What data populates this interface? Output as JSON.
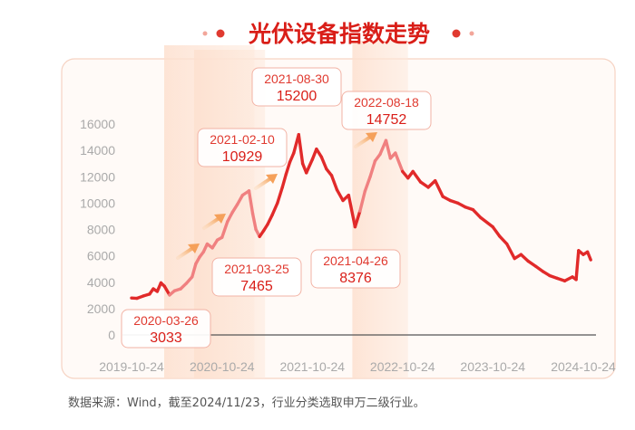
{
  "chart_data": {
    "type": "line",
    "title": "光伏设备指数走势",
    "xlabel": "",
    "ylabel": "",
    "x_ticks": [
      "2019-10-24",
      "2020-10-24",
      "2021-10-24",
      "2022-10-24",
      "2023-10-24",
      "2024-10-24"
    ],
    "y_ticks": [
      0,
      2000,
      4000,
      6000,
      8000,
      10000,
      12000,
      14000,
      16000
    ],
    "ylim": [
      0,
      16000
    ],
    "xlim": [
      "2019-10-24",
      "2024-11-23"
    ],
    "grid": false,
    "legend": "none",
    "series": [
      {
        "points": [
          [
            "2019-10-24",
            2800
          ],
          [
            "2019-11-15",
            2780
          ],
          [
            "2019-12-10",
            2950
          ],
          [
            "2020-01-05",
            3100
          ],
          [
            "2020-01-20",
            3500
          ],
          [
            "2020-02-05",
            3300
          ],
          [
            "2020-02-20",
            3950
          ],
          [
            "2020-03-05",
            3700
          ],
          [
            "2020-03-26",
            3033
          ],
          [
            "2020-04-15",
            3350
          ],
          [
            "2020-05-10",
            3500
          ],
          [
            "2020-06-01",
            3900
          ],
          [
            "2020-06-25",
            4400
          ],
          [
            "2020-07-10",
            5400
          ],
          [
            "2020-07-25",
            5900
          ],
          [
            "2020-08-10",
            6300
          ],
          [
            "2020-08-25",
            6900
          ],
          [
            "2020-09-15",
            6600
          ],
          [
            "2020-10-05",
            7200
          ],
          [
            "2020-10-24",
            7400
          ],
          [
            "2020-11-15",
            8600
          ],
          [
            "2020-12-05",
            9300
          ],
          [
            "2020-12-25",
            9900
          ],
          [
            "2021-01-15",
            10600
          ],
          [
            "2021-02-10",
            10929
          ],
          [
            "2021-02-25",
            9200
          ],
          [
            "2021-03-10",
            8000
          ],
          [
            "2021-03-25",
            7465
          ],
          [
            "2021-04-10",
            7900
          ],
          [
            "2021-04-26",
            8376
          ],
          [
            "2021-05-15",
            9100
          ],
          [
            "2021-06-05",
            10000
          ],
          [
            "2021-06-25",
            11200
          ],
          [
            "2021-07-10",
            12200
          ],
          [
            "2021-07-25",
            13100
          ],
          [
            "2021-08-10",
            13800
          ],
          [
            "2021-08-30",
            15200
          ],
          [
            "2021-09-15",
            13000
          ],
          [
            "2021-09-30",
            12300
          ],
          [
            "2021-10-24",
            13300
          ],
          [
            "2021-11-10",
            14100
          ],
          [
            "2021-11-30",
            13500
          ],
          [
            "2021-12-20",
            12600
          ],
          [
            "2022-01-10",
            12100
          ],
          [
            "2022-02-01",
            11000
          ],
          [
            "2022-02-25",
            10200
          ],
          [
            "2022-03-20",
            10600
          ],
          [
            "2022-04-15",
            8200
          ],
          [
            "2022-05-05",
            9400
          ],
          [
            "2022-05-25",
            10900
          ],
          [
            "2022-06-15",
            12000
          ],
          [
            "2022-07-05",
            13200
          ],
          [
            "2022-07-25",
            13700
          ],
          [
            "2022-08-18",
            14752
          ],
          [
            "2022-09-05",
            13400
          ],
          [
            "2022-09-25",
            13800
          ],
          [
            "2022-10-24",
            12400
          ],
          [
            "2022-11-15",
            11900
          ],
          [
            "2022-12-05",
            12400
          ],
          [
            "2023-01-05",
            11600
          ],
          [
            "2023-02-05",
            11200
          ],
          [
            "2023-03-05",
            11700
          ],
          [
            "2023-04-05",
            10500
          ],
          [
            "2023-05-05",
            10200
          ],
          [
            "2023-06-05",
            10000
          ],
          [
            "2023-07-05",
            9700
          ],
          [
            "2023-08-05",
            9500
          ],
          [
            "2023-09-05",
            8900
          ],
          [
            "2023-10-24",
            8200
          ],
          [
            "2023-11-20",
            7500
          ],
          [
            "2023-12-20",
            6900
          ],
          [
            "2024-01-20",
            5800
          ],
          [
            "2024-02-15",
            6100
          ],
          [
            "2024-03-15",
            5600
          ],
          [
            "2024-04-15",
            5200
          ],
          [
            "2024-05-15",
            4800
          ],
          [
            "2024-06-10",
            4500
          ],
          [
            "2024-07-10",
            4300
          ],
          [
            "2024-08-10",
            4100
          ],
          [
            "2024-09-10",
            4400
          ],
          [
            "2024-09-25",
            4200
          ],
          [
            "2024-10-05",
            6400
          ],
          [
            "2024-10-24",
            6100
          ],
          [
            "2024-11-10",
            6300
          ],
          [
            "2024-11-23",
            5700
          ]
        ]
      }
    ],
    "annotations": [
      {
        "date": "2020-03-26",
        "value": "3033"
      },
      {
        "date": "2021-02-10",
        "value": "10929"
      },
      {
        "date": "2021-03-25",
        "value": "7465"
      },
      {
        "date": "2021-08-30",
        "value": "15200"
      },
      {
        "date": "2021-04-26",
        "value": "8376"
      },
      {
        "date": "2022-08-18",
        "value": "14752"
      }
    ],
    "highlight_periods": [
      [
        "2020-03-26",
        "2021-02-10"
      ],
      [
        "2020-07-25",
        "2021-03-25"
      ],
      [
        "2022-04-26",
        "2022-10-24"
      ]
    ],
    "colors": {
      "line": "#e12a2a",
      "highlight_line": "#f08080",
      "accent": "#d91e18",
      "band": "#fde4d6",
      "arrow": "#f5a05a",
      "axis_text": "#aaaaaa"
    },
    "source": "数据来源：Wind，截至2024/11/23，行业分类选取申万二级行业。"
  }
}
